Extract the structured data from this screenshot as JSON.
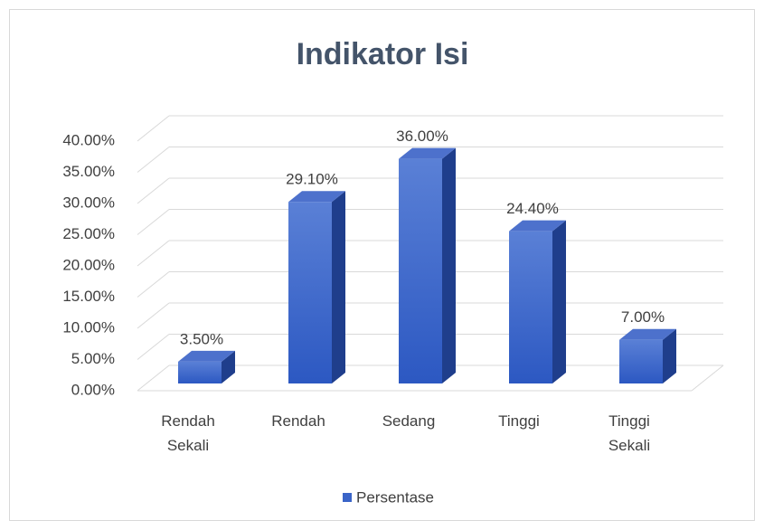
{
  "chart_data": {
    "type": "bar3d",
    "title": "Indikator Isi",
    "categories": [
      "Rendah Sekali",
      "Rendah",
      "Sedang",
      "Tinggi",
      "Tinggi Sekali"
    ],
    "series": [
      {
        "name": "Persentase",
        "color": "#3a64c8",
        "values": [
          3.5,
          29.1,
          36,
          24.4,
          7
        ],
        "value_labels": [
          "3.50%",
          "29.10%",
          "36.00%",
          "24.40%",
          "7.00%"
        ]
      }
    ],
    "ylim": [
      0,
      40
    ],
    "yticks": [
      {
        "value": 0,
        "label": "0.00%"
      },
      {
        "value": 5,
        "label": "5.00%"
      },
      {
        "value": 10,
        "label": "10.00%"
      },
      {
        "value": 15,
        "label": "15.00%"
      },
      {
        "value": 20,
        "label": "20.00%"
      },
      {
        "value": 25,
        "label": "25.00%"
      },
      {
        "value": 30,
        "label": "30.00%"
      },
      {
        "value": 35,
        "label": "35.00%"
      },
      {
        "value": 40,
        "label": "40.00%"
      }
    ],
    "grid": true,
    "legend": "bottom"
  }
}
